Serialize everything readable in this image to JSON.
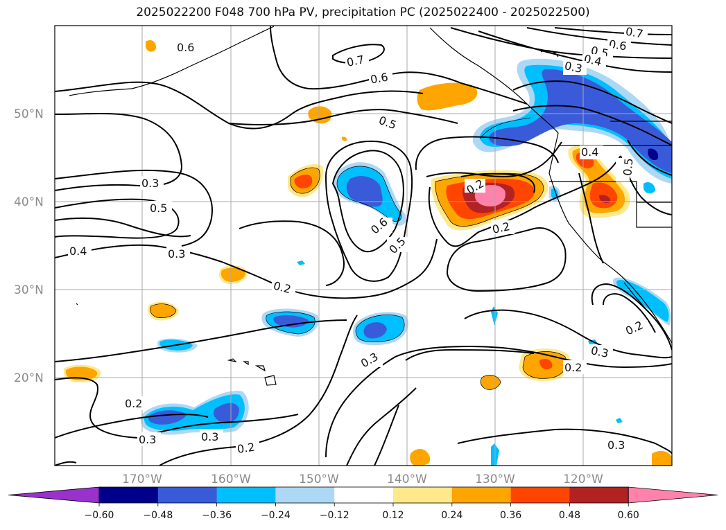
{
  "title": "2025022200 F048 700 hPa PV, precipitation PC (2025022400 - 2025022500)",
  "lat_labels": [
    "50°N",
    "40°N",
    "30°N",
    "20°N"
  ],
  "lon_labels": [
    "170°W",
    "160°W",
    "150°W",
    "140°W",
    "130°W",
    "120°W"
  ],
  "contour_labels": [
    "0.6",
    "0.7",
    "0.6",
    "0.5",
    "0.7",
    "0.6",
    "0.5",
    "0.4",
    "0.3",
    "0.4",
    "0.5",
    "0.3",
    "0.5",
    "0.4",
    "0.3",
    "0.2",
    "0.6",
    "0.5",
    "0.2",
    "0.2",
    "0.3",
    "0.2",
    "0.3",
    "0.2",
    "0.3",
    "0.3",
    "0.2",
    "0.2",
    "0.3"
  ],
  "colorbar": {
    "ticks": [
      "−0.60",
      "−0.48",
      "−0.36",
      "−0.24",
      "−0.12",
      "0.12",
      "0.24",
      "0.36",
      "0.48",
      "0.60"
    ],
    "colors": [
      "#9932cc",
      "#00008b",
      "#3a5bd9",
      "#00bfff",
      "#add8f5",
      "#ffffff",
      "#ffe98a",
      "#ffa500",
      "#ff4500",
      "#b22222",
      "#ff82ab"
    ]
  }
}
